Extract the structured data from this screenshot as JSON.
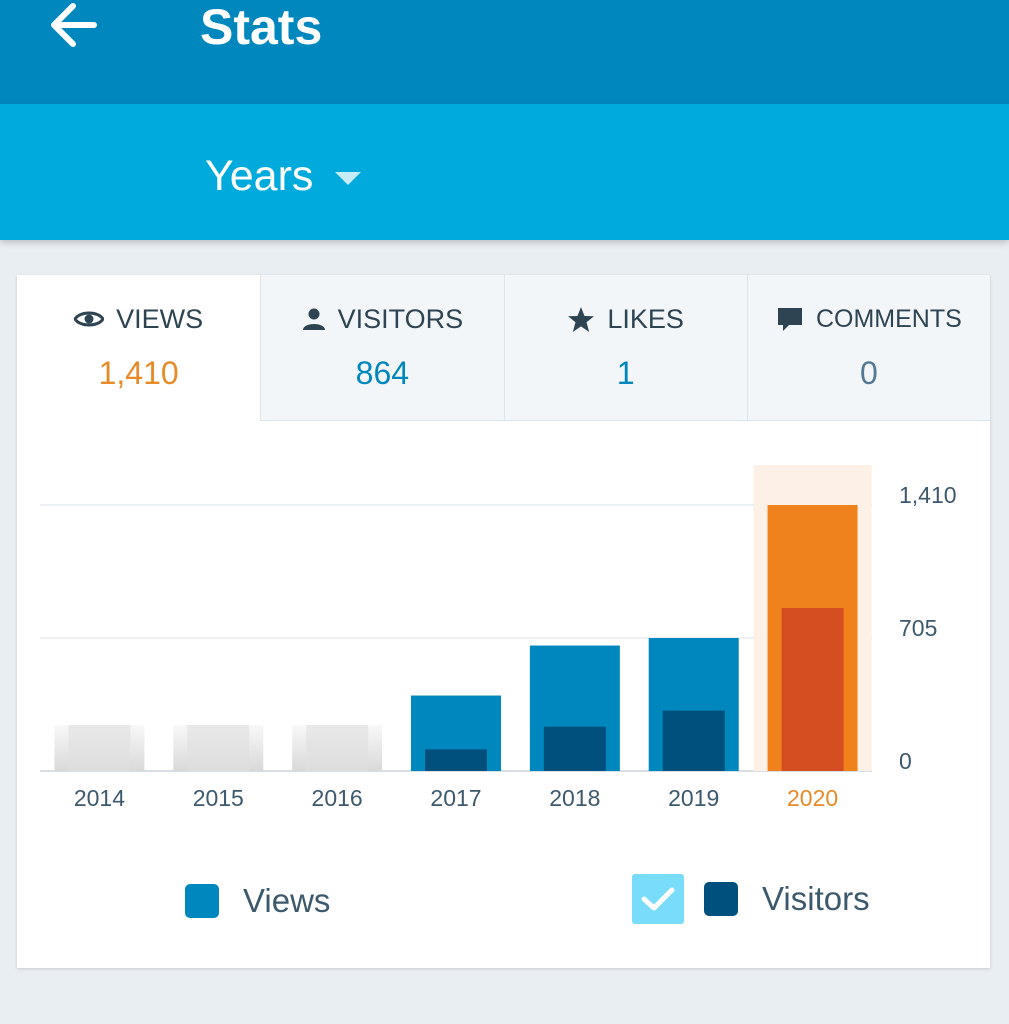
{
  "header": {
    "title": "Stats",
    "back_icon": "arrow-left-icon"
  },
  "period": {
    "label": "Years"
  },
  "tabs": [
    {
      "label": "VIEWS",
      "value": "1,410",
      "icon": "eye-icon",
      "active": true
    },
    {
      "label": "VISITORS",
      "value": "864",
      "icon": "person-icon",
      "active": false
    },
    {
      "label": "LIKES",
      "value": "1",
      "icon": "star-icon",
      "active": false
    },
    {
      "label": "COMMENTS",
      "value": "0",
      "icon": "comment-icon",
      "active": false
    }
  ],
  "chart_data": {
    "type": "bar",
    "categories": [
      "2014",
      "2015",
      "2016",
      "2017",
      "2018",
      "2019",
      "2020"
    ],
    "series": [
      {
        "name": "Views",
        "values": [
          0,
          0,
          0,
          400,
          665,
          705,
          1410
        ]
      },
      {
        "name": "Visitors",
        "values": [
          0,
          0,
          0,
          115,
          235,
          320,
          864
        ]
      }
    ],
    "selected_category": "2020",
    "y_ticks": [
      "0",
      "705",
      "1,410"
    ],
    "ylim": [
      0,
      1410
    ],
    "colors": {
      "views": "#0087be",
      "visitors": "#00507e",
      "selected_views": "#f0821e",
      "selected_visitors": "#d54e21",
      "selected_highlight": "#fdf0e6",
      "selected_label": "#e68b28"
    }
  },
  "legend": {
    "views_label": "Views",
    "visitors_label": "Visitors",
    "visitors_checked": true
  }
}
